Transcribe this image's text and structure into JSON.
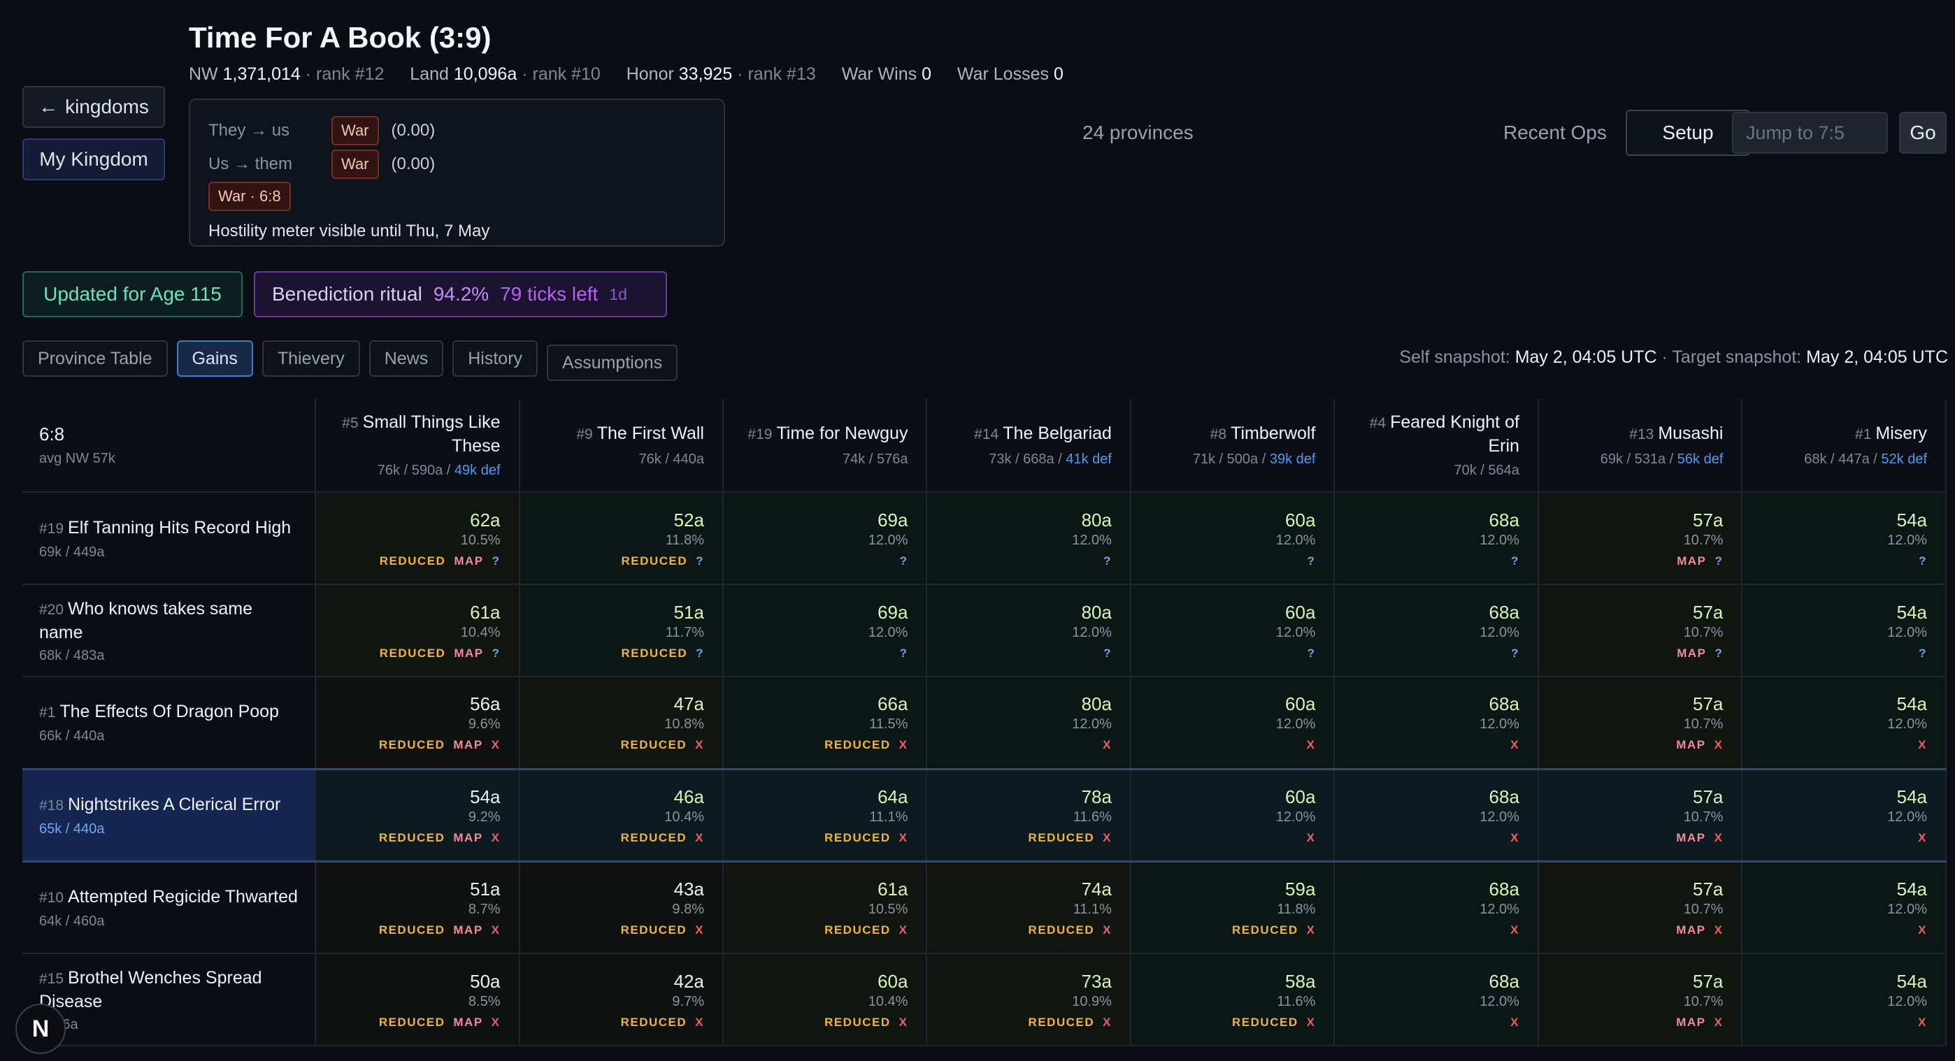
{
  "header": {
    "title": "Time For A Book (3:9)",
    "nw_label": "NW",
    "nw": "1,371,014",
    "nw_rank": "· rank #12",
    "land_label": "Land",
    "land": "10,096a",
    "land_rank": "· rank #10",
    "honor_label": "Honor",
    "honor": "33,925",
    "honor_rank": "· rank #13",
    "war_wins_label": "War Wins",
    "war_wins": "0",
    "war_losses_label": "War Losses",
    "war_losses": "0"
  },
  "nav": {
    "kingdoms_label": "kingdoms",
    "kingdoms_arrow": "←",
    "my_kingdom_label": "My Kingdom"
  },
  "war": {
    "they_label": "They → us",
    "they_badge": "War",
    "they_val": "(0.00)",
    "us_label": "Us → them",
    "us_badge": "War",
    "us_val": "(0.00)",
    "war_with": "War · 6:8",
    "hostility": "Hostility meter visible until Thu, 7 May"
  },
  "toolbar": {
    "provinces": "24 provinces",
    "recent_ops": "Recent Ops",
    "setup": "Setup",
    "jump_placeholder": "Jump to 7:5",
    "go": "Go"
  },
  "badges": {
    "updated": "Updated for Age 115",
    "bene_name": "Benediction ritual",
    "bene_pct": "94.2%",
    "bene_ticks": "79 ticks left",
    "bene_days": "1d"
  },
  "tabs": [
    "Province Table",
    "Gains",
    "Thievery",
    "News",
    "History",
    "Assumptions"
  ],
  "snapshot": {
    "self_label": "Self snapshot:",
    "self_val": "May 2, 04:05 UTC",
    "sep": "·",
    "target_label": "Target snapshot:",
    "target_val": "May 2, 04:05 UTC"
  },
  "table": {
    "corner": {
      "kd": "6:8",
      "avg": "avg NW 57k"
    },
    "columns": [
      {
        "rank": "#5",
        "name": "Small Things Like These",
        "meta": "76k / 590a /",
        "def": "49k def"
      },
      {
        "rank": "#9",
        "name": "The First Wall",
        "meta": "76k / 440a",
        "def": ""
      },
      {
        "rank": "#19",
        "name": "Time for Newguy",
        "meta": "74k / 576a",
        "def": ""
      },
      {
        "rank": "#14",
        "name": "The Belgariad",
        "meta": "73k / 668a /",
        "def": "41k def"
      },
      {
        "rank": "#8",
        "name": "Timberwolf",
        "meta": "71k / 500a /",
        "def": "39k def"
      },
      {
        "rank": "#4",
        "name": "Feared Knight of Erin",
        "meta": "70k / 564a",
        "def": ""
      },
      {
        "rank": "#13",
        "name": "Musashi",
        "meta": "69k / 531a /",
        "def": "56k def"
      },
      {
        "rank": "#1",
        "name": "Misery",
        "meta": "68k / 447a /",
        "def": "52k def"
      }
    ],
    "rows": [
      {
        "rank": "#19",
        "name": "Elf Tanning Hits Record High",
        "meta": "69k / 449a",
        "cells": [
          {
            "v": "62a",
            "p": "10.5%",
            "t": "REDUCED MAP ?"
          },
          {
            "v": "52a",
            "p": "11.8%",
            "t": "REDUCED ?"
          },
          {
            "v": "69a",
            "p": "12.0%",
            "t": "?"
          },
          {
            "v": "80a",
            "p": "12.0%",
            "t": "?"
          },
          {
            "v": "60a",
            "p": "12.0%",
            "t": "?"
          },
          {
            "v": "68a",
            "p": "12.0%",
            "t": "?"
          },
          {
            "v": "57a",
            "p": "10.7%",
            "t": "MAP ?"
          },
          {
            "v": "54a",
            "p": "12.0%",
            "t": "?"
          }
        ]
      },
      {
        "rank": "#20",
        "name": "Who knows takes same name",
        "meta": "68k / 483a",
        "cells": [
          {
            "v": "61a",
            "p": "10.4%",
            "t": "REDUCED MAP ?"
          },
          {
            "v": "51a",
            "p": "11.7%",
            "t": "REDUCED ?"
          },
          {
            "v": "69a",
            "p": "12.0%",
            "t": "?"
          },
          {
            "v": "80a",
            "p": "12.0%",
            "t": "?"
          },
          {
            "v": "60a",
            "p": "12.0%",
            "t": "?"
          },
          {
            "v": "68a",
            "p": "12.0%",
            "t": "?"
          },
          {
            "v": "57a",
            "p": "10.7%",
            "t": "MAP ?"
          },
          {
            "v": "54a",
            "p": "12.0%",
            "t": "?"
          }
        ]
      },
      {
        "rank": "#1",
        "name": "The Effects Of Dragon Poop",
        "meta": "66k / 440a",
        "cells": [
          {
            "v": "56a",
            "p": "9.6%",
            "t": "REDUCED MAP X"
          },
          {
            "v": "47a",
            "p": "10.8%",
            "t": "REDUCED X"
          },
          {
            "v": "66a",
            "p": "11.5%",
            "t": "REDUCED X"
          },
          {
            "v": "80a",
            "p": "12.0%",
            "t": "X"
          },
          {
            "v": "60a",
            "p": "12.0%",
            "t": "X"
          },
          {
            "v": "68a",
            "p": "12.0%",
            "t": "X"
          },
          {
            "v": "57a",
            "p": "10.7%",
            "t": "MAP X"
          },
          {
            "v": "54a",
            "p": "12.0%",
            "t": "X"
          }
        ]
      },
      {
        "rank": "#18",
        "name": "Nightstrikes A Clerical Error",
        "meta": "65k / 440a",
        "highlight": true,
        "cells": [
          {
            "v": "54a",
            "p": "9.2%",
            "t": "REDUCED MAP X"
          },
          {
            "v": "46a",
            "p": "10.4%",
            "t": "REDUCED X"
          },
          {
            "v": "64a",
            "p": "11.1%",
            "t": "REDUCED X"
          },
          {
            "v": "78a",
            "p": "11.6%",
            "t": "REDUCED X"
          },
          {
            "v": "60a",
            "p": "12.0%",
            "t": "X"
          },
          {
            "v": "68a",
            "p": "12.0%",
            "t": "X"
          },
          {
            "v": "57a",
            "p": "10.7%",
            "t": "MAP X"
          },
          {
            "v": "54a",
            "p": "12.0%",
            "t": "X"
          }
        ]
      },
      {
        "rank": "#10",
        "name": "Attempted Regicide Thwarted",
        "meta": "64k / 460a",
        "cells": [
          {
            "v": "51a",
            "p": "8.7%",
            "t": "REDUCED MAP X"
          },
          {
            "v": "43a",
            "p": "9.8%",
            "t": "REDUCED X"
          },
          {
            "v": "61a",
            "p": "10.5%",
            "t": "REDUCED X"
          },
          {
            "v": "74a",
            "p": "11.1%",
            "t": "REDUCED X"
          },
          {
            "v": "59a",
            "p": "11.8%",
            "t": "REDUCED X"
          },
          {
            "v": "68a",
            "p": "12.0%",
            "t": "X"
          },
          {
            "v": "57a",
            "p": "10.7%",
            "t": "MAP X"
          },
          {
            "v": "54a",
            "p": "12.0%",
            "t": "X"
          }
        ]
      },
      {
        "rank": "#15",
        "name": "Brothel Wenches Spread Disease",
        "meta": "/ 506a",
        "cells": [
          {
            "v": "50a",
            "p": "8.5%",
            "t": "REDUCED MAP X"
          },
          {
            "v": "42a",
            "p": "9.7%",
            "t": "REDUCED X"
          },
          {
            "v": "60a",
            "p": "10.4%",
            "t": "REDUCED X"
          },
          {
            "v": "73a",
            "p": "10.9%",
            "t": "REDUCED X"
          },
          {
            "v": "58a",
            "p": "11.6%",
            "t": "REDUCED X"
          },
          {
            "v": "68a",
            "p": "12.0%",
            "t": "X"
          },
          {
            "v": "57a",
            "p": "10.7%",
            "t": "MAP X"
          },
          {
            "v": "54a",
            "p": "12.0%",
            "t": "X"
          }
        ]
      }
    ]
  },
  "colors": {
    "good_gain": "#d6f5b8",
    "mid_gain": "#eef0f4",
    "reduced": "#f0b43a",
    "map": "#f28a9b",
    "unknown": "#6aa7f2",
    "blocked": "#f05f5f"
  },
  "footer_badge": "N"
}
